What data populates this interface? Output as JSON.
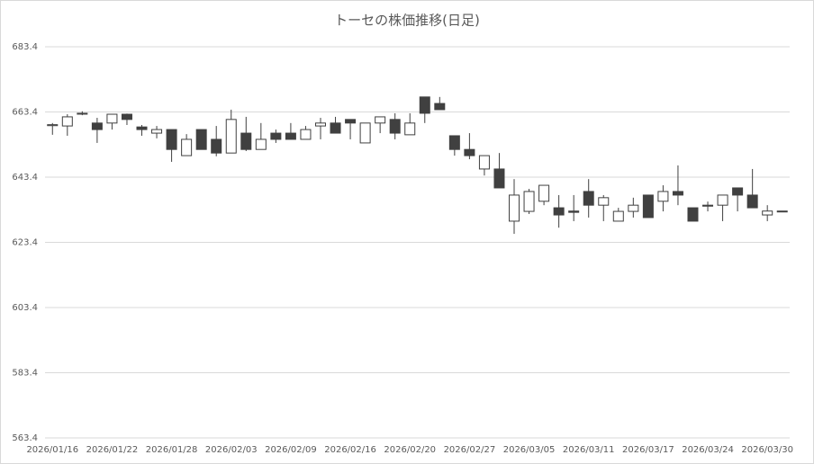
{
  "chart_data": {
    "type": "candlestick",
    "title": "トーセの株価推移(日足)",
    "categories": [
      "2026/01/16",
      null,
      null,
      null,
      "2026/01/22",
      null,
      null,
      null,
      "2026/01/28",
      null,
      null,
      null,
      "2026/02/03",
      null,
      null,
      null,
      "2026/02/09",
      null,
      null,
      null,
      "2026/02/16",
      null,
      null,
      null,
      "2026/02/20",
      null,
      null,
      null,
      "2026/02/27",
      null,
      null,
      null,
      "2026/03/05",
      null,
      null,
      null,
      "2026/03/11",
      null,
      null,
      null,
      "2026/03/17",
      null,
      null,
      null,
      "2026/03/24",
      null,
      null,
      null,
      "2026/03/30",
      null
    ],
    "open": [
      659.2,
      659.1,
      663.0,
      660.0,
      660.0,
      662.7,
      658.8,
      656.9,
      658.0,
      650.0,
      658.0,
      655.0,
      650.8,
      656.9,
      651.9,
      656.9,
      656.9,
      655.0,
      659.1,
      660.0,
      661.1,
      653.9,
      660.0,
      661.1,
      656.4,
      668.0,
      666.0,
      656.1,
      651.9,
      645.9,
      645.9,
      629.9,
      632.9,
      636.0,
      634.0,
      633.0,
      639.0,
      634.8,
      629.9,
      632.9,
      637.9,
      636.0,
      639.0,
      634.0,
      634.8,
      634.8,
      640.1,
      637.9,
      631.8,
      633.0
    ],
    "high": [
      660.0,
      662.7,
      663.6,
      661.6,
      662.7,
      662.9,
      659.4,
      659.1,
      658.0,
      656.6,
      658.0,
      659.1,
      664.1,
      661.9,
      660.0,
      658.0,
      660.0,
      659.1,
      661.6,
      661.9,
      661.1,
      660.0,
      661.9,
      663.0,
      663.0,
      668.0,
      668.0,
      656.1,
      656.9,
      650.0,
      650.8,
      642.8,
      639.8,
      640.9,
      637.9,
      637.9,
      642.8,
      637.9,
      634.0,
      637.1,
      637.9,
      640.9,
      647.0,
      634.0,
      635.9,
      637.9,
      640.1,
      645.9,
      634.8,
      633.0
    ],
    "low": [
      656.4,
      656.1,
      662.4,
      653.9,
      658.0,
      659.4,
      656.1,
      655.3,
      648.1,
      650.0,
      651.9,
      649.8,
      650.8,
      651.4,
      651.9,
      653.9,
      655.0,
      655.0,
      655.0,
      656.9,
      655.0,
      653.9,
      656.9,
      655.0,
      656.4,
      660.0,
      664.1,
      650.0,
      648.9,
      643.9,
      640.1,
      626.0,
      632.1,
      634.8,
      627.9,
      629.9,
      631.0,
      629.9,
      629.9,
      631.0,
      631.0,
      632.9,
      634.8,
      629.9,
      632.9,
      629.9,
      632.9,
      634.0,
      629.9,
      632.8
    ],
    "close": [
      659.5,
      661.9,
      662.8,
      658.0,
      662.7,
      661.1,
      658.0,
      658.0,
      651.9,
      655.0,
      651.9,
      650.8,
      661.1,
      651.9,
      655.0,
      655.0,
      655.0,
      658.0,
      660.0,
      656.9,
      660.0,
      660.0,
      661.9,
      656.9,
      660.0,
      663.0,
      664.1,
      651.9,
      650.0,
      650.0,
      640.1,
      637.9,
      639.0,
      640.9,
      631.8,
      632.6,
      634.8,
      637.1,
      632.9,
      634.8,
      631.0,
      639.0,
      637.9,
      629.9,
      634.5,
      637.9,
      637.9,
      634.0,
      633.0,
      632.8
    ],
    "up_color": "#ffffff",
    "down_color": "#404040",
    "edge_color": "#404040",
    "ylim": [
      563.4,
      683.4
    ],
    "yticks": [
      563.4,
      583.4,
      603.4,
      623.4,
      643.4,
      663.4,
      683.4
    ],
    "grid": true
  }
}
